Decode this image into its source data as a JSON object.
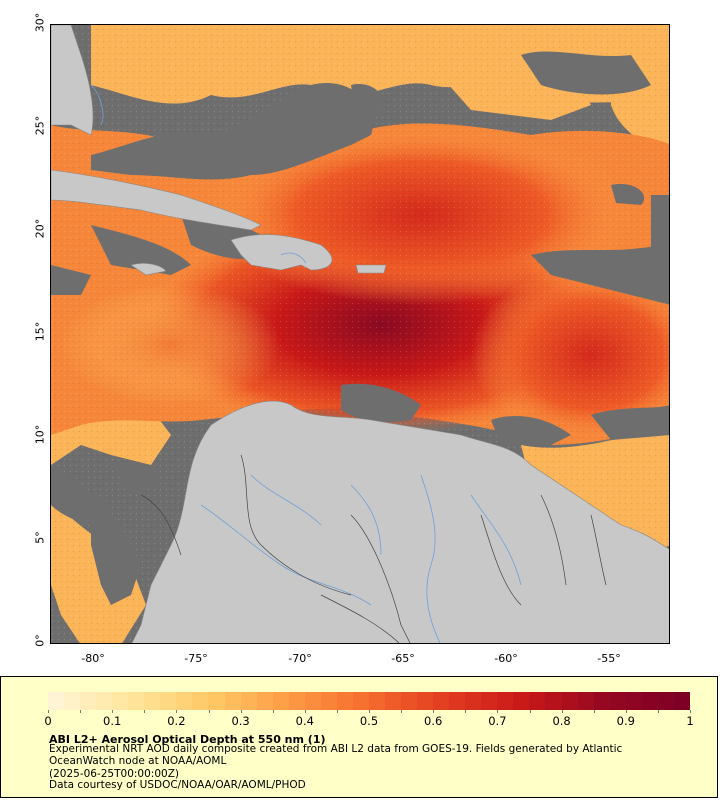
{
  "map": {
    "y_ticks": [
      "30°",
      "25°",
      "20°",
      "15°",
      "10°",
      "5°",
      "0°"
    ],
    "x_ticks": [
      "-80°",
      "-75°",
      "-70°",
      "-65°",
      "-60°",
      "-55°"
    ],
    "lat_range": [
      0,
      30
    ],
    "lon_range": [
      -82.3,
      -52.3
    ],
    "land_color": "#c8c8c8",
    "nodata_color": "#6e6e6e"
  },
  "legend": {
    "ticks": [
      "0",
      "0.1",
      "0.2",
      "0.3",
      "0.4",
      "0.5",
      "0.6",
      "0.7",
      "0.8",
      "0.9",
      "1"
    ],
    "range": [
      0,
      1
    ],
    "colormap": [
      "#fff5d4",
      "#ffe49a",
      "#ffc865",
      "#fd9a44",
      "#f56b2d",
      "#e23b20",
      "#c81818",
      "#950821",
      "#7f0025"
    ],
    "title": "ABI L2+ Aerosol Optical Depth at 550 nm (1)",
    "description": "Experimental NRT AOD daily composite created from ABI L2 data from GOES-19. Fields generated by Atlantic OceanWatch node at NOAA/AOML",
    "timestamp": "(2025-06-25T00:00:00Z)",
    "credit": "Data courtesy of USDOC/NOAA/OAR/AOML/PHOD"
  }
}
